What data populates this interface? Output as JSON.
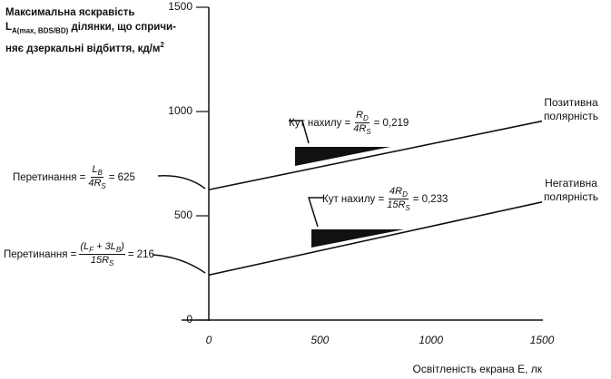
{
  "chart_data": {
    "type": "line",
    "y_title_lines": [
      [
        {
          "text": "Максимальна яскравість"
        }
      ],
      [
        {
          "text": "L"
        },
        {
          "sub": "A(max, BDS/BD)"
        },
        {
          "text": " ділянки, що спричи-"
        }
      ],
      [
        {
          "text": "няє дзеркальні відбиття, кд/м"
        },
        {
          "sup": "2"
        }
      ]
    ],
    "x_title": "Освітленість екрана E, лк",
    "x": [
      0,
      1500
    ],
    "series": [
      {
        "name": "Позитивна полярність",
        "color": "#111111",
        "values": [
          625,
          954
        ]
      },
      {
        "name": "Негативна полярність",
        "color": "#111111",
        "values": [
          216,
          566
        ]
      }
    ],
    "xlim": [
      0,
      1500
    ],
    "xticks": [
      0,
      500,
      1000,
      1500
    ],
    "ylim": [
      0,
      1500
    ],
    "yticks": [
      0,
      500,
      1000,
      1500
    ],
    "annotations": [
      {
        "prefix": "Кут нахилу =",
        "numerator": [
          {
            "text": "R"
          },
          {
            "sub": "D"
          }
        ],
        "denominator": [
          {
            "text": "4R"
          },
          {
            "sub": "S"
          }
        ],
        "suffix": "= 0,219"
      },
      {
        "prefix": "Кут нахилу =",
        "numerator": [
          {
            "text": "4R"
          },
          {
            "sub": "D"
          }
        ],
        "denominator": [
          {
            "text": "15R"
          },
          {
            "sub": "S"
          }
        ],
        "suffix": "= 0,233"
      },
      {
        "prefix": "Перетинання =",
        "numerator": [
          {
            "text": "L"
          },
          {
            "sub": "B"
          }
        ],
        "denominator": [
          {
            "text": "4R"
          },
          {
            "sub": "S"
          }
        ],
        "suffix": "= 625"
      },
      {
        "prefix": "Перетинання =",
        "numerator": [
          {
            "text": "(L"
          },
          {
            "sub": "F"
          },
          {
            "text": " + 3L"
          },
          {
            "sub": "B"
          },
          {
            "text": ")"
          }
        ],
        "denominator": [
          {
            "text": "15R"
          },
          {
            "sub": "S"
          }
        ],
        "suffix": "= 216"
      }
    ]
  }
}
